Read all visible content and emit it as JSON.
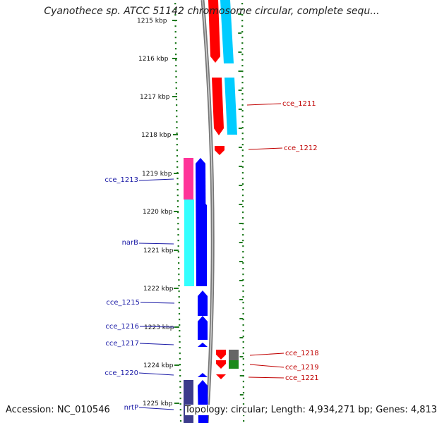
{
  "title": "Cyanothece sp. ATCC 51142 chromosome circular, complete sequ...",
  "footer": {
    "accession": "Accession: NC_010546",
    "summary": "Topology: circular; Length: 4,934,271 bp; Genes: 4,813"
  },
  "scale": {
    "ticks": [
      "1215 kbp",
      "1216 kbp",
      "1217 kbp",
      "1218 kbp",
      "1219 kbp",
      "1220 kbp",
      "1221 kbp",
      "1222 kbp",
      "1223 kbp",
      "1224 kbp",
      "1225 kbp"
    ]
  },
  "genes_forward": [
    {
      "label": "cce_1211"
    },
    {
      "label": "cce_1212"
    },
    {
      "label": "cce_1218"
    },
    {
      "label": "cce_1219"
    },
    {
      "label": "cce_1221"
    }
  ],
  "genes_reverse": [
    {
      "label": "cce_1213"
    },
    {
      "label": "narB"
    },
    {
      "label": "cce_1215"
    },
    {
      "label": "cce_1216"
    },
    {
      "label": "cce_1217"
    },
    {
      "label": "cce_1220"
    },
    {
      "label": "nrtP"
    }
  ],
  "colors": {
    "forward_cds": "#ff0000",
    "reverse_cds": "#0000ff",
    "cog_cyan": "#00ccff",
    "cog_aqua": "#33ffff",
    "cog_magenta": "#ff3399",
    "cog_navy": "#3c3c8c",
    "cog_grey": "#666666",
    "cog_green": "#1a8a1a",
    "backbone": "#777777",
    "tick_green": "#1f7a1f"
  }
}
